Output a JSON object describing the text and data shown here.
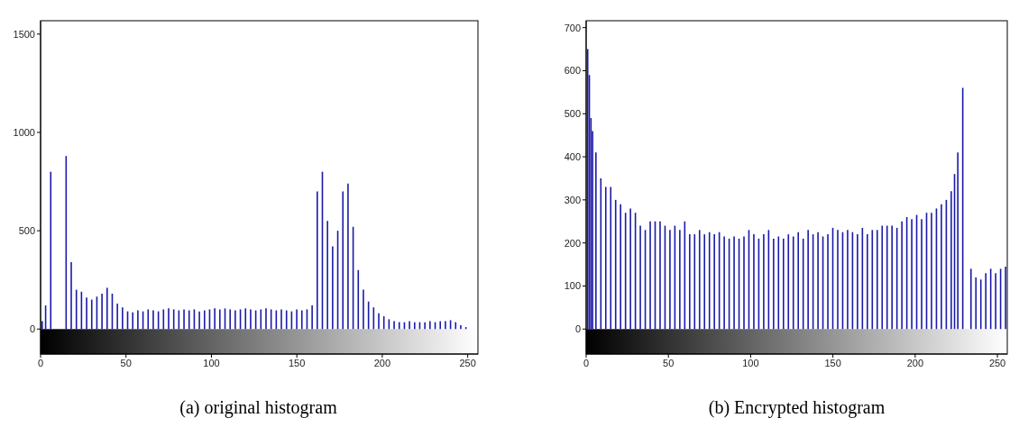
{
  "chart_data": [
    {
      "type": "bar",
      "title": "(a) original histogram",
      "color": "#1a1aa8",
      "xlim": [
        0,
        256
      ],
      "xticks": [
        0,
        50,
        100,
        150,
        200,
        250
      ],
      "ylim": [
        -127,
        1568
      ],
      "yticks": [
        0,
        500,
        1000,
        1500
      ],
      "grid": false,
      "x": [
        1,
        3,
        6,
        9,
        12,
        15,
        18,
        21,
        24,
        27,
        30,
        33,
        36,
        39,
        42,
        45,
        48,
        51,
        54,
        57,
        60,
        63,
        66,
        69,
        72,
        75,
        78,
        81,
        84,
        87,
        90,
        93,
        96,
        99,
        102,
        105,
        108,
        111,
        114,
        117,
        120,
        123,
        126,
        129,
        132,
        135,
        138,
        141,
        144,
        147,
        150,
        153,
        156,
        159,
        162,
        165,
        168,
        171,
        174,
        177,
        180,
        183,
        186,
        189,
        192,
        195,
        198,
        201,
        204,
        207,
        210,
        213,
        216,
        219,
        222,
        225,
        228,
        231,
        234,
        237,
        240,
        243,
        246,
        249
      ],
      "values": [
        40,
        120,
        800,
        null,
        null,
        880,
        340,
        200,
        190,
        160,
        150,
        165,
        180,
        210,
        180,
        130,
        110,
        90,
        85,
        95,
        90,
        100,
        95,
        90,
        100,
        105,
        100,
        95,
        100,
        95,
        100,
        90,
        95,
        100,
        105,
        100,
        105,
        100,
        95,
        100,
        105,
        100,
        95,
        100,
        105,
        100,
        95,
        100,
        95,
        90,
        100,
        95,
        100,
        120,
        700,
        800,
        550,
        420,
        500,
        700,
        740,
        520,
        300,
        200,
        140,
        110,
        80,
        65,
        50,
        40,
        35,
        35,
        40,
        35,
        35,
        35,
        40,
        35,
        40,
        40,
        45,
        35,
        20,
        10
      ]
    },
    {
      "type": "bar",
      "title": "(b) Encrypted histogram",
      "color": "#1a1aa8",
      "xlim": [
        0,
        256
      ],
      "xticks": [
        0,
        50,
        100,
        150,
        200,
        250
      ],
      "ylim": [
        -58,
        716
      ],
      "yticks": [
        0,
        100,
        200,
        300,
        400,
        500,
        600,
        700
      ],
      "grid": false,
      "x": [
        1,
        2,
        3,
        4,
        6,
        9,
        12,
        15,
        18,
        21,
        24,
        27,
        30,
        33,
        36,
        39,
        42,
        45,
        48,
        51,
        54,
        57,
        60,
        63,
        66,
        69,
        72,
        75,
        78,
        81,
        84,
        87,
        90,
        93,
        96,
        99,
        102,
        105,
        108,
        111,
        114,
        117,
        120,
        123,
        126,
        129,
        132,
        135,
        138,
        141,
        144,
        147,
        150,
        153,
        156,
        159,
        162,
        165,
        168,
        171,
        174,
        177,
        180,
        183,
        186,
        189,
        192,
        195,
        198,
        201,
        204,
        207,
        210,
        213,
        216,
        219,
        222,
        224,
        226,
        229,
        231,
        234,
        237,
        240,
        243,
        246,
        249,
        252,
        255
      ],
      "values": [
        650,
        590,
        490,
        460,
        410,
        350,
        330,
        330,
        300,
        290,
        270,
        280,
        270,
        240,
        230,
        250,
        250,
        250,
        240,
        230,
        240,
        230,
        250,
        220,
        220,
        230,
        220,
        225,
        220,
        225,
        215,
        210,
        215,
        210,
        215,
        230,
        220,
        210,
        220,
        230,
        210,
        215,
        210,
        220,
        215,
        225,
        210,
        230,
        220,
        225,
        215,
        220,
        235,
        230,
        225,
        230,
        225,
        220,
        235,
        220,
        230,
        230,
        240,
        240,
        240,
        235,
        250,
        260,
        255,
        265,
        255,
        270,
        270,
        280,
        290,
        300,
        320,
        360,
        410,
        560,
        null,
        140,
        120,
        115,
        130,
        140,
        130,
        140,
        145
      ]
    }
  ]
}
